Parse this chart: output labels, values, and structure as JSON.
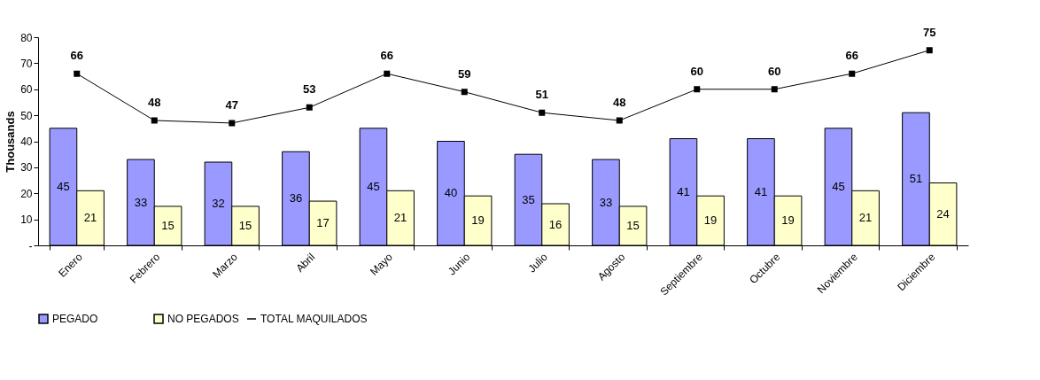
{
  "chart_data": {
    "type": "bar",
    "ylabel": "Thousands",
    "categories": [
      "Enero",
      "Febrero",
      "Marzo",
      "Abril",
      "Mayo",
      "Junio",
      "Julio",
      "Agosto",
      "Septiembre",
      "Octubre",
      "Noviembre",
      "Diciembre"
    ],
    "series": [
      {
        "name": "PEGADO",
        "color": "#9999ff",
        "values": [
          45,
          33,
          32,
          36,
          45,
          40,
          35,
          33,
          41,
          41,
          45,
          51
        ]
      },
      {
        "name": "NO PEGADOS",
        "color": "#ffffcc",
        "values": [
          21,
          15,
          15,
          17,
          21,
          19,
          16,
          15,
          19,
          19,
          21,
          24
        ]
      },
      {
        "name": "TOTAL MAQUILADOS",
        "type": "line",
        "color": "#000000",
        "marker": "square",
        "values": [
          66,
          48,
          47,
          53,
          66,
          59,
          51,
          48,
          60,
          60,
          66,
          75
        ]
      }
    ],
    "ylim": [
      0,
      80
    ],
    "yticks": [
      {
        "value": 0,
        "label": "-"
      },
      10,
      20,
      30,
      40,
      50,
      60,
      70,
      80
    ],
    "data_labels": true,
    "legend": "bottom",
    "grid": false
  }
}
